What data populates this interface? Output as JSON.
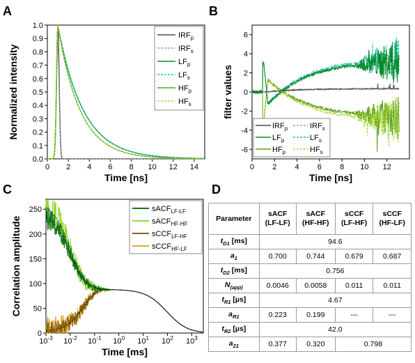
{
  "panel_letters": {
    "A": "A",
    "B": "B",
    "C": "C",
    "D": "D"
  },
  "colors": {
    "irf_p": "#4a4a4a",
    "irf_s": "#a0a0a0",
    "lf_p": "#0a8a2e",
    "lf_s": "#19c2a0",
    "hf_p": "#5c9e1e",
    "hf_s": "#a8d83a",
    "sacf_lf": "#0c7a1c",
    "sacf_hf": "#9ad63a",
    "sccf_lfhf": "#8a6410",
    "sccf_hflf": "#e0a820"
  },
  "chart_data": [
    {
      "id": "A",
      "type": "line",
      "xlabel": "Time [ns]",
      "ylabel": "Normalized intensity",
      "xlim": [
        0,
        15
      ],
      "ylim": [
        0,
        1.0
      ],
      "xticks": [
        0,
        2,
        4,
        6,
        8,
        10,
        12,
        14
      ],
      "yticks": [
        0.0,
        0.1,
        0.2,
        0.3,
        0.4,
        0.5,
        0.6,
        0.7,
        0.8,
        0.9,
        1.0
      ],
      "legend_position": "top-right",
      "series": [
        {
          "name": "IRF",
          "sub": "p",
          "key": "irf_p",
          "dash": false,
          "peak": 1.0,
          "width": 0.18,
          "decay_ns": 0
        },
        {
          "name": "IRF",
          "sub": "s",
          "key": "irf_s",
          "dash": true,
          "peak": 0.83,
          "width": 0.18,
          "decay_ns": 0
        },
        {
          "name": "LF",
          "sub": "p",
          "key": "lf_p",
          "dash": false,
          "peak": 1.0,
          "width": 0.18,
          "decay_ns": 2.4
        },
        {
          "name": "LF",
          "sub": "s",
          "key": "lf_s",
          "dash": true,
          "peak": 1.0,
          "width": 0.18,
          "decay_ns": 2.4
        },
        {
          "name": "HF",
          "sub": "p",
          "key": "hf_p",
          "dash": false,
          "peak": 1.0,
          "width": 0.18,
          "decay_ns": 2.1
        },
        {
          "name": "HF",
          "sub": "s",
          "key": "hf_s",
          "dash": true,
          "peak": 1.0,
          "width": 0.18,
          "decay_ns": 2.1
        }
      ],
      "peak_time_ns": 1.0
    },
    {
      "id": "B",
      "type": "line",
      "xlabel": "Time [ns]",
      "ylabel": "filter values",
      "xlim": [
        0,
        14
      ],
      "ylim": [
        -7,
        7
      ],
      "xticks": [
        0,
        2,
        4,
        6,
        8,
        10,
        12
      ],
      "yticks": [
        -6,
        -4,
        -2,
        0,
        2,
        4,
        6
      ],
      "legend_position": "bottom-left",
      "series": [
        {
          "name": "IRF",
          "sub": "p",
          "key": "irf_p",
          "dash": false
        },
        {
          "name": "IRF",
          "sub": "s",
          "key": "irf_s",
          "dash": true
        },
        {
          "name": "LF",
          "sub": "p",
          "key": "lf_p",
          "dash": false
        },
        {
          "name": "LF",
          "sub": "s",
          "key": "lf_s",
          "dash": true
        },
        {
          "name": "HF",
          "sub": "p",
          "key": "hf_p",
          "dash": false
        },
        {
          "name": "HF",
          "sub": "s",
          "key": "hf_s",
          "dash": true
        }
      ]
    },
    {
      "id": "C",
      "type": "line",
      "xlabel": "Time [ms]",
      "ylabel": "Correlation amplitude",
      "xscale": "log",
      "xlim": [
        0.001,
        3000
      ],
      "ylim": [
        0,
        270
      ],
      "xticks": [
        0.001,
        0.01,
        0.1,
        1,
        10,
        100,
        1000
      ],
      "xtick_labels": [
        [
          "10",
          "-3"
        ],
        [
          "10",
          "-2"
        ],
        [
          "10",
          "-1"
        ],
        [
          "10",
          "0"
        ],
        [
          "10",
          "1"
        ],
        [
          "10",
          "2"
        ],
        [
          "10",
          "3"
        ]
      ],
      "yticks": [
        0,
        50,
        100,
        150,
        200,
        250
      ],
      "legend_position": "top-right",
      "series": [
        {
          "name": "sACF",
          "sub": "LF-LF",
          "key": "sacf_lf"
        },
        {
          "name": "sACF",
          "sub": "HF-HF",
          "key": "sacf_hf"
        },
        {
          "name": "sCCF",
          "sub": "LF-HF",
          "key": "sccf_lfhf"
        },
        {
          "name": "sCCF",
          "sub": "HF-LF",
          "key": "sccf_hflf"
        }
      ]
    },
    {
      "id": "D",
      "type": "table",
      "header": [
        {
          "main": "Parameter",
          "second": ""
        },
        {
          "main": "sACF",
          "second": "(LF-LF)"
        },
        {
          "main": "sACF",
          "second": "(HF-HF)"
        },
        {
          "main": "sCCF",
          "second": "(LF-HF)"
        },
        {
          "main": "sCCF",
          "second": "(HF-LF)"
        }
      ],
      "rows": [
        {
          "symbol": "t",
          "sub": "D1",
          "unit": "[ms]",
          "cells": [
            {
              "v": "94.6",
              "span": 4
            }
          ]
        },
        {
          "symbol": "a",
          "sub": "1",
          "unit": "",
          "cells": [
            {
              "v": "0.700",
              "span": 1
            },
            {
              "v": "0.744",
              "span": 1
            },
            {
              "v": "0.679",
              "span": 1
            },
            {
              "v": "0.687",
              "span": 1
            }
          ]
        },
        {
          "symbol": "t",
          "sub": "D2",
          "unit": "[ms]",
          "cells": [
            {
              "v": "0.756",
              "span": 4
            }
          ]
        },
        {
          "symbol": "N",
          "sub": "(app)",
          "unit": "",
          "cells": [
            {
              "v": "0.0046",
              "span": 1
            },
            {
              "v": "0.0058",
              "span": 1
            },
            {
              "v": "0.011",
              "span": 1
            },
            {
              "v": "0.011",
              "span": 1
            }
          ]
        },
        {
          "symbol": "t",
          "sub": "R1",
          "unit": "[µs]",
          "cells": [
            {
              "v": "4.67",
              "span": 4
            }
          ]
        },
        {
          "symbol": "a",
          "sub": "R1",
          "unit": "",
          "cells": [
            {
              "v": "0.223",
              "span": 1
            },
            {
              "v": "0.199",
              "span": 1
            },
            {
              "v": "---",
              "span": 1
            },
            {
              "v": "---",
              "span": 1
            }
          ]
        },
        {
          "symbol": "t",
          "sub": "R2",
          "unit": "[µs]",
          "cells": [
            {
              "v": "42.0",
              "span": 4
            }
          ]
        },
        {
          "symbol": "a",
          "sub": "21",
          "unit": "",
          "cells": [
            {
              "v": "0.377",
              "span": 1
            },
            {
              "v": "0.320",
              "span": 1
            },
            {
              "v": "0.798",
              "span": 2
            }
          ]
        }
      ]
    }
  ]
}
